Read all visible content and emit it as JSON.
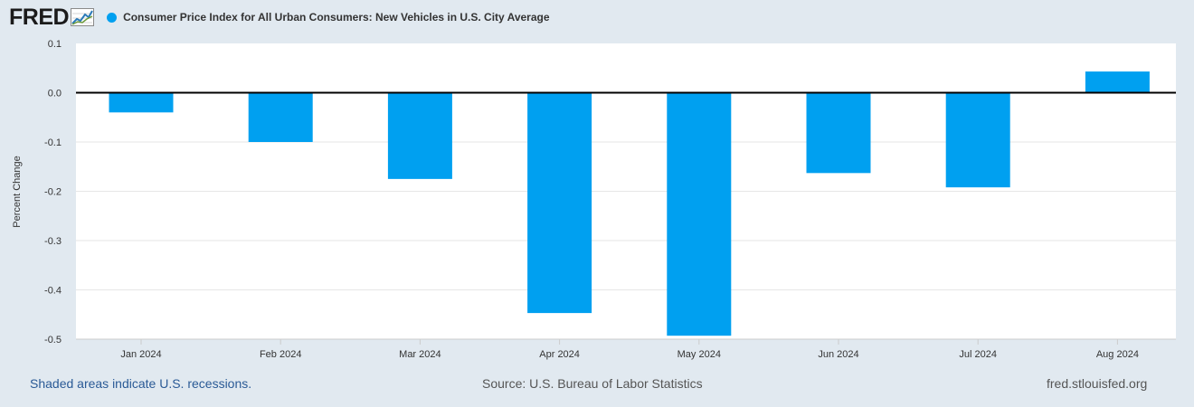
{
  "header": {
    "logo_text": "FRED",
    "series_title": "Consumer Price Index for All Urban Consumers: New Vehicles in U.S. City Average"
  },
  "colors": {
    "bar": "#00a0f0",
    "plot_bg": "#ffffff",
    "page_bg": "#e1e9f0",
    "grid": "#e6e6e6",
    "zero_line": "#000000"
  },
  "chart_data": {
    "type": "bar",
    "title": "Consumer Price Index for All Urban Consumers: New Vehicles in U.S. City Average",
    "categories": [
      "Jan 2024",
      "Feb 2024",
      "Mar 2024",
      "Apr 2024",
      "May 2024",
      "Jun 2024",
      "Jul 2024",
      "Aug 2024"
    ],
    "values": [
      -0.04,
      -0.1,
      -0.175,
      -0.447,
      -0.493,
      -0.163,
      -0.192,
      0.043
    ],
    "ylabel": "Percent Change",
    "xlabel": "",
    "ylim": [
      -0.5,
      0.1
    ],
    "yticks": [
      {
        "value": 0.1,
        "label": "0.1"
      },
      {
        "value": 0.0,
        "label": "0.0"
      },
      {
        "value": -0.1,
        "label": "-0.1"
      },
      {
        "value": -0.2,
        "label": "-0.2"
      },
      {
        "value": -0.3,
        "label": "-0.3"
      },
      {
        "value": -0.4,
        "label": "-0.4"
      },
      {
        "value": -0.5,
        "label": "-0.5"
      }
    ],
    "grid": true
  },
  "footer": {
    "recession_note": "Shaded areas indicate U.S. recessions.",
    "source": "Source: U.S. Bureau of Labor Statistics",
    "site": "fred.stlouisfed.org"
  }
}
